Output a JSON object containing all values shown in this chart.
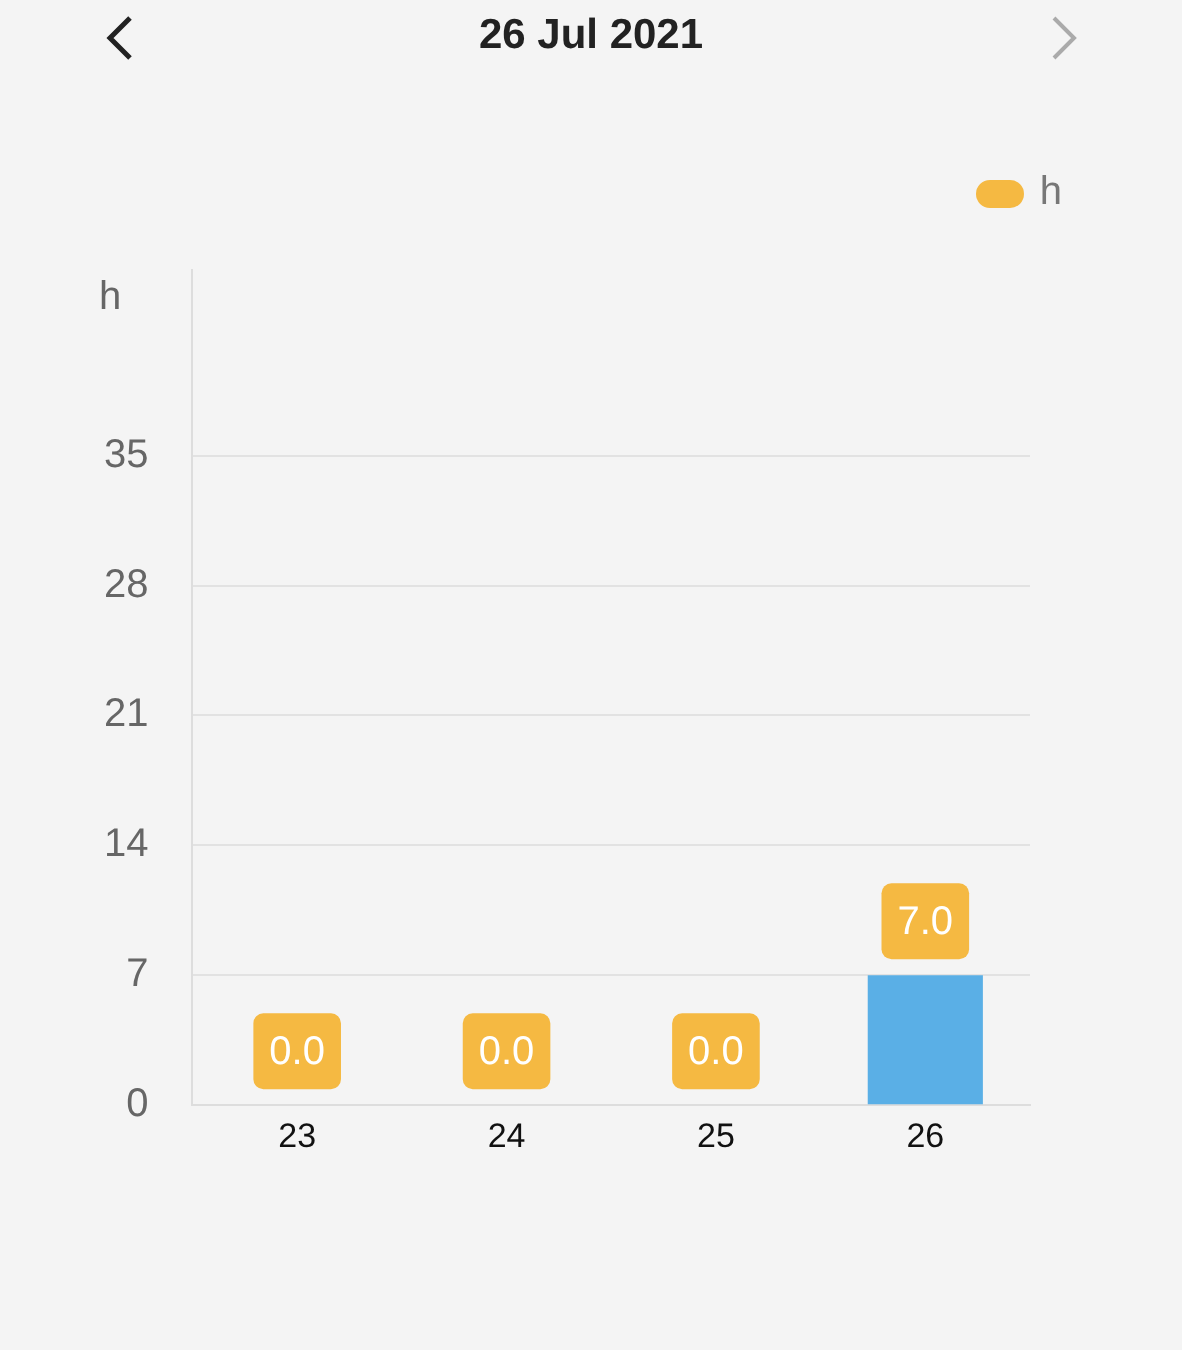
{
  "chart_data": {
    "type": "bar",
    "title": "26 Jul 2021",
    "ylabel": "h",
    "categories": [
      "23",
      "24",
      "25",
      "26"
    ],
    "series": [
      {
        "name": "h",
        "color": "#f5b942",
        "colors": [
          "#5aafe6",
          "#5aafe6",
          "#5aafe6",
          "#5aafe6"
        ],
        "values": [
          0,
          0,
          0,
          7
        ],
        "value_labels": [
          "0.0",
          "0.0",
          "0.0",
          "7.0"
        ]
      }
    ],
    "ylim": [
      0,
      45
    ],
    "yticks": [
      0,
      7,
      14,
      21,
      28,
      35
    ],
    "grid": "y",
    "legend": "top right"
  }
}
